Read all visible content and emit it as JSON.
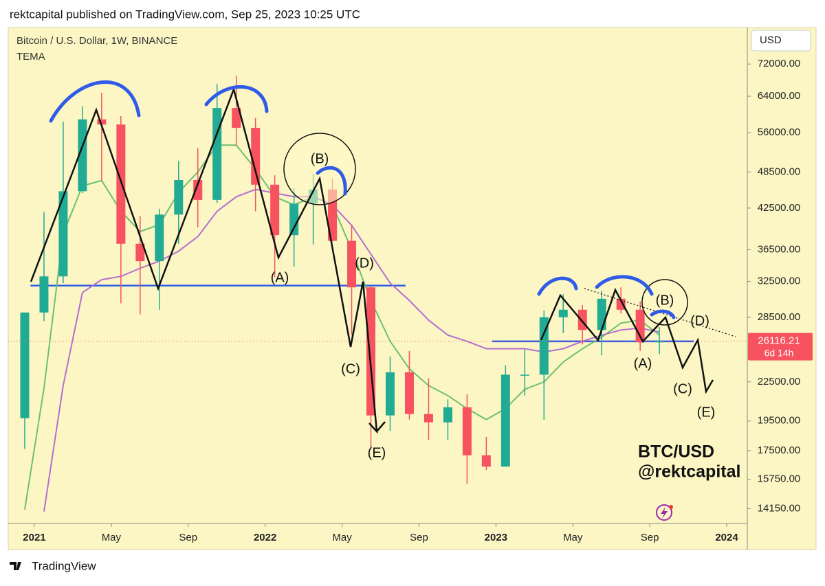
{
  "chart_data": {
    "type": "candlestick",
    "header": "rektcapital published on TradingView.com, Sep 25, 2023 10:25 UTC",
    "title": "Bitcoin / U.S. Dollar, 1W, BINANCE",
    "subtitle": "TEMA",
    "currency": "USD",
    "footer": "TradingView",
    "watermark": [
      "BTC/USD",
      "@rektcapital"
    ],
    "annotations": [
      "(A)",
      "(B)",
      "(C)",
      "(D)",
      "(E)"
    ],
    "log_scale": true,
    "up_color": "#22ab94",
    "down_color": "#f7525f",
    "x": [
      "2020-12",
      "2021-01",
      "2021-02",
      "2021-03",
      "2021-04",
      "2021-05",
      "2021-06",
      "2021-07",
      "2021-08",
      "2021-09",
      "2021-10",
      "2021-11",
      "2021-12",
      "2022-01",
      "2022-02",
      "2022-03",
      "2022-04",
      "2022-05",
      "2022-06",
      "2022-07",
      "2022-08",
      "2022-09",
      "2022-10",
      "2022-11",
      "2022-12",
      "2023-01",
      "2023-02",
      "2023-03",
      "2023-04",
      "2023-05",
      "2023-06",
      "2023-07",
      "2023-08",
      "2023-09"
    ],
    "open": [
      19700,
      29000,
      33100,
      45200,
      58800,
      57700,
      37300,
      35000,
      41500,
      47100,
      43800,
      61300,
      57000,
      46300,
      38500,
      43200,
      45500,
      37700,
      31800,
      19900,
      23300,
      20000,
      19400,
      20500,
      17200,
      16500,
      23100,
      23100,
      28500,
      29300,
      27200,
      30500,
      29300,
      26000
    ],
    "high": [
      29000,
      41900,
      58300,
      61700,
      64800,
      59500,
      41300,
      42400,
      50500,
      52900,
      67000,
      69000,
      59100,
      47900,
      45800,
      48200,
      47400,
      40000,
      31900,
      24700,
      25200,
      22800,
      21100,
      21500,
      18400,
      23900,
      25300,
      29200,
      31000,
      29800,
      31400,
      31800,
      30200,
      27500
    ],
    "low": [
      17600,
      28100,
      32300,
      44900,
      47000,
      30000,
      28800,
      29300,
      37300,
      39600,
      43300,
      53300,
      42000,
      33000,
      34300,
      37200,
      37600,
      26700,
      17600,
      18800,
      19600,
      18200,
      18200,
      15500,
      16300,
      16500,
      21400,
      19600,
      26900,
      25800,
      24800,
      28900,
      25200,
      24900
    ],
    "close": [
      29000,
      33100,
      45200,
      58800,
      57700,
      37300,
      35000,
      41500,
      47100,
      43800,
      61300,
      57000,
      46300,
      38500,
      43200,
      45500,
      37700,
      31800,
      19900,
      23300,
      20000,
      19400,
      20500,
      17200,
      16500,
      23100,
      23100,
      28500,
      29300,
      27200,
      30500,
      29300,
      26000,
      26100
    ],
    "lines": [
      {
        "color": "#6cc070",
        "values": [
          14100,
          22000,
          38700,
          46100,
          47000,
          42000,
          39000,
          40000,
          45000,
          48500,
          53500,
          53500,
          49000,
          44300,
          43000,
          44300,
          43000,
          36500,
          30300,
          26100,
          23600,
          22200,
          21400,
          20400,
          19600,
          20400,
          21900,
          22500,
          24200,
          25400,
          26500,
          27900,
          28200,
          26700
        ]
      },
      {
        "color": "#b46ed0",
        "values": [
          null,
          14000,
          22200,
          31200,
          32700,
          33100,
          34100,
          35000,
          36300,
          38300,
          42000,
          44300,
          45500,
          44900,
          44300,
          44300,
          43000,
          39900,
          35900,
          32300,
          30300,
          28200,
          26700,
          26100,
          25400,
          25400,
          25400,
          25100,
          25400,
          26100,
          26700,
          27200,
          27400,
          27000
        ]
      }
    ],
    "levels": [
      {
        "price": 32000,
        "from": "2020-12",
        "to": "2022-08"
      },
      {
        "price": 26100,
        "from": "2022-12",
        "to": "2023-11"
      }
    ],
    "last_price": 26116.21,
    "countdown": "6d 14h",
    "ylim": [
      13400,
      82300
    ],
    "yticks": [
      {
        "value": 72000,
        "label": "72000.00"
      },
      {
        "value": 64000,
        "label": "64000.00"
      },
      {
        "value": 56000,
        "label": "56000.00"
      },
      {
        "value": 48500,
        "label": "48500.00"
      },
      {
        "value": 42500,
        "label": "42500.00"
      },
      {
        "value": 36500,
        "label": "36500.00"
      },
      {
        "value": 32500,
        "label": "32500.00"
      },
      {
        "value": 28500,
        "label": "28500.00"
      },
      {
        "value": 22500,
        "label": "22500.00"
      },
      {
        "value": 19500,
        "label": "19500.00"
      },
      {
        "value": 17500,
        "label": "17500.00"
      },
      {
        "value": 15750,
        "label": "15750.00"
      },
      {
        "value": 14150,
        "label": "14150.00"
      }
    ],
    "xlim": [
      "2020-12",
      "2024-02"
    ],
    "xticks": [
      {
        "value": "2021-01",
        "label": "2021"
      },
      {
        "value": "2021-05",
        "label": "May"
      },
      {
        "value": "2021-09",
        "label": "Sep"
      },
      {
        "value": "2022-01",
        "label": "2022"
      },
      {
        "value": "2022-05",
        "label": "May"
      },
      {
        "value": "2022-09",
        "label": "Sep"
      },
      {
        "value": "2023-01",
        "label": "2023"
      },
      {
        "value": "2023-05",
        "label": "May"
      },
      {
        "value": "2023-09",
        "label": "Sep"
      },
      {
        "value": "2024-01",
        "label": "2024"
      }
    ]
  }
}
